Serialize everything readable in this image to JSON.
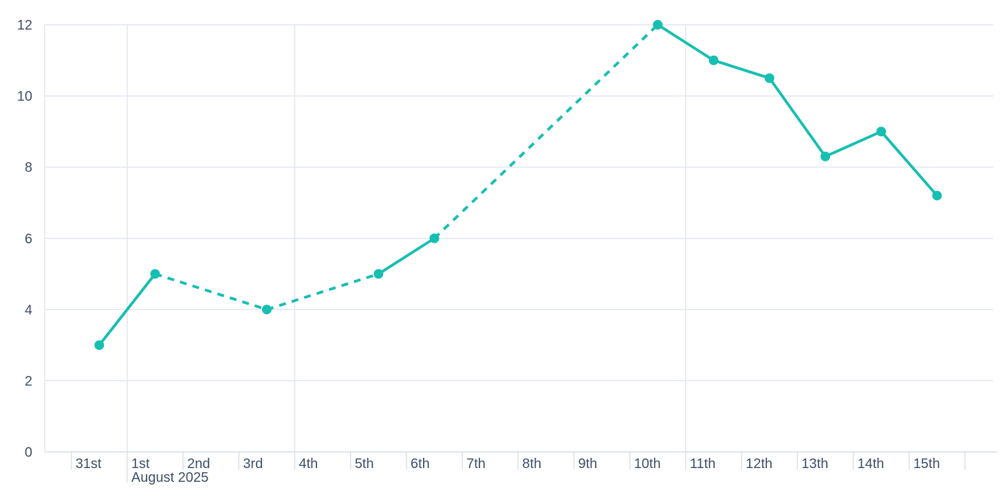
{
  "chart_data": {
    "type": "line",
    "title": "",
    "xlabel": "",
    "ylabel": "",
    "x_labels": [
      "31st",
      "1st",
      "2nd",
      "3rd",
      "4th",
      "5th",
      "6th",
      "7th",
      "8th",
      "9th",
      "10th",
      "11th",
      "12th",
      "13th",
      "14th",
      "15th"
    ],
    "x_period_label": "August 2025",
    "x_period_label_anchor": "1st",
    "points": [
      {
        "day": "31st",
        "value": 3
      },
      {
        "day": "1st",
        "value": 5
      },
      {
        "day": "3rd",
        "value": 4
      },
      {
        "day": "5th",
        "value": 5
      },
      {
        "day": "6th",
        "value": 6
      },
      {
        "day": "10th",
        "value": 12
      },
      {
        "day": "11th",
        "value": 11
      },
      {
        "day": "12th",
        "value": 10.5
      },
      {
        "day": "13th",
        "value": 8.3
      },
      {
        "day": "14th",
        "value": 9
      },
      {
        "day": "15th",
        "value": 7.2
      }
    ],
    "missing_days_bridged_with_dashes": [
      "2nd",
      "4th",
      "7th",
      "8th",
      "9th"
    ],
    "yticks": [
      0,
      2,
      4,
      6,
      8,
      10,
      12
    ],
    "ylim": [
      0,
      12
    ],
    "vertical_gridline_days": [
      "1st",
      "4th",
      "11th"
    ],
    "legend": "none",
    "grid": "horizontal-major",
    "colors": {
      "series": "#17beb2",
      "axis_label": "#3f4d6a",
      "gridline": "#e3e6f0",
      "axis_line": "#d5dae7",
      "tick": "#dcdfeb",
      "background": "#ffffff"
    }
  }
}
